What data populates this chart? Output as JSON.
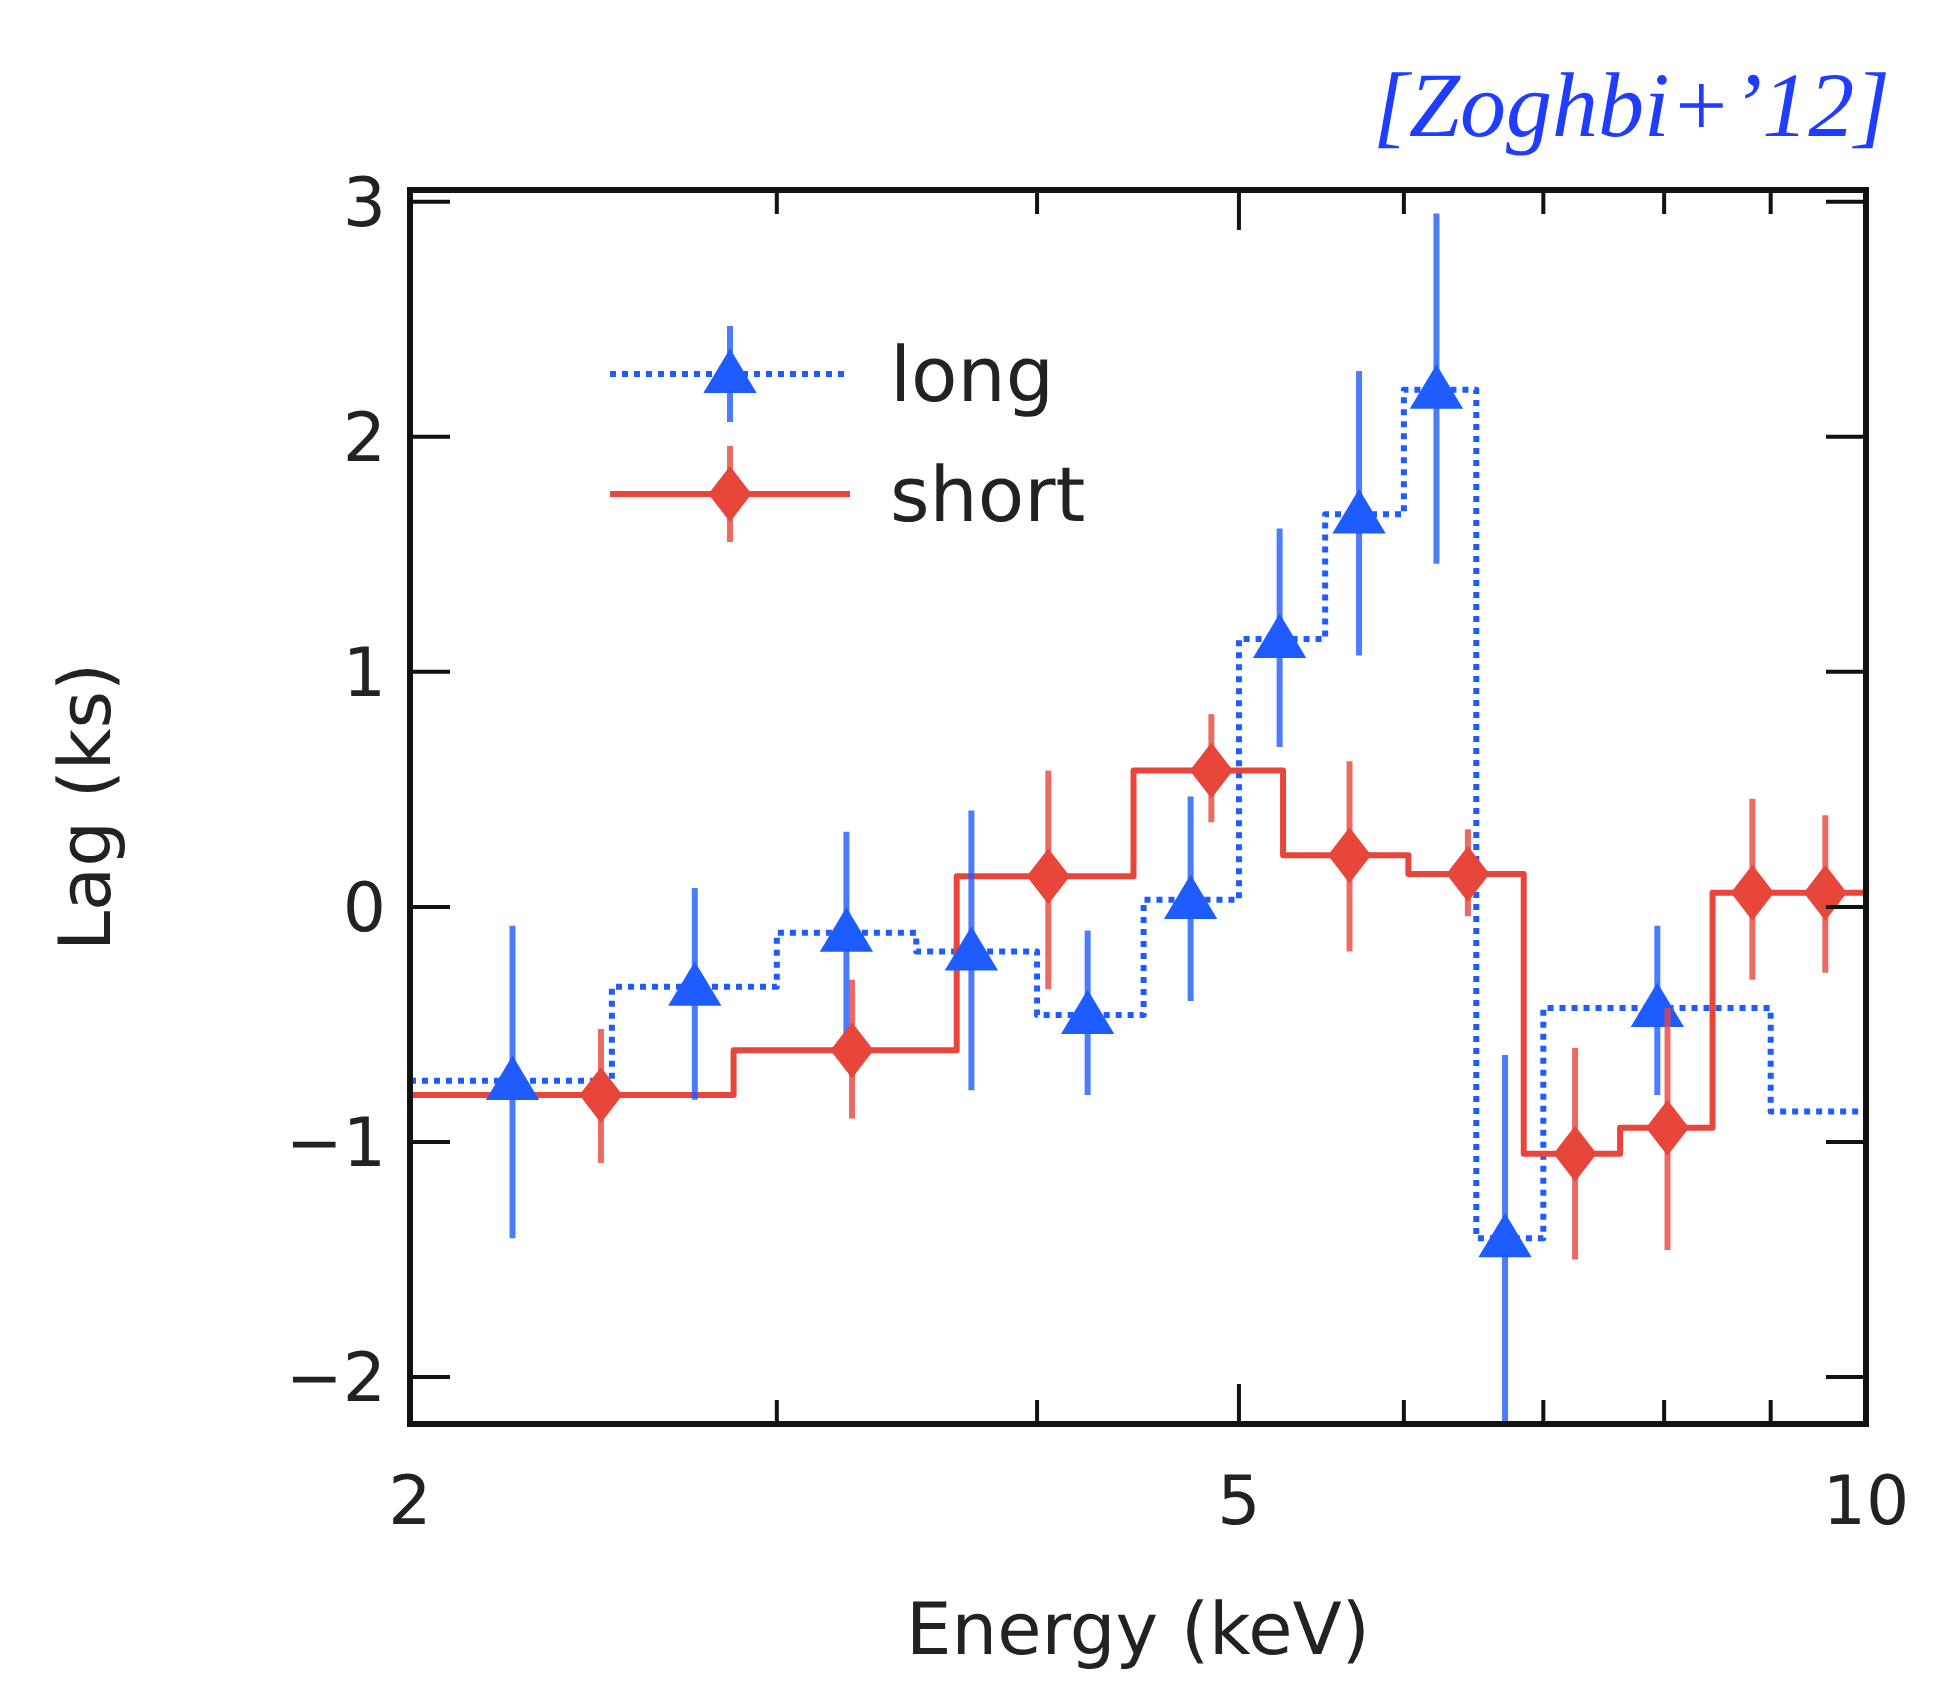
{
  "chart_data": {
    "type": "scatter",
    "xlabel": "Energy (keV)",
    "ylabel": "Lag (ks)",
    "annotations": [
      "[Zoghbi+’12]"
    ],
    "log": "x",
    "xlim": [
      2,
      10
    ],
    "ylim": [
      -2.2,
      3.05
    ],
    "xticks": [
      2,
      {
        "value": 3,
        "label": null
      },
      {
        "value": 4,
        "label": null
      },
      5,
      {
        "value": 6,
        "label": null
      },
      {
        "value": 7,
        "label": null
      },
      {
        "value": 8,
        "label": null
      },
      {
        "value": 9,
        "label": null
      },
      10
    ],
    "yticks": [
      {
        "value": -2,
        "label": "−2"
      },
      {
        "value": -1,
        "label": "−1"
      },
      0,
      1,
      2,
      3
    ],
    "legend": "top left",
    "grid": false,
    "series": [
      {
        "type": "step",
        "color": "#1f5cff",
        "line_style": "dotted",
        "x": [
          2,
          2.5,
          3,
          3.5,
          4,
          4.5,
          5,
          5.5,
          6,
          6.5,
          7,
          9,
          10
        ],
        "values": [
          -0.74,
          -0.34,
          -0.11,
          -0.19,
          -0.46,
          0.03,
          1.14,
          1.67,
          2.2,
          -1.41,
          -0.43,
          -0.87,
          -0.87
        ]
      },
      {
        "type": "step",
        "color": "#e8463a",
        "line_style": "solid",
        "x": [
          2,
          2.86,
          3.66,
          4.45,
          5.25,
          6.03,
          6.85,
          7.62,
          8.44,
          10
        ],
        "values": [
          -0.8,
          -0.61,
          0.13,
          0.58,
          0.22,
          0.14,
          -1.05,
          -0.94,
          0.06,
          0.06
        ]
      },
      {
        "name": "long",
        "color": "#1f5cff",
        "marker": "triangle",
        "line_style": "dotted",
        "x": [
          2.24,
          2.74,
          3.24,
          3.72,
          4.23,
          4.74,
          5.23,
          5.71,
          6.22,
          6.71,
          7.94
        ],
        "values": [
          -0.74,
          -0.34,
          -0.11,
          -0.19,
          -0.46,
          0.03,
          1.14,
          1.67,
          2.2,
          -1.41,
          -0.43
        ],
        "errors": [
          [
            -1.41,
            -0.08
          ],
          [
            -0.82,
            0.08
          ],
          [
            -0.65,
            0.32
          ],
          [
            -0.78,
            0.41
          ],
          [
            -0.8,
            -0.1
          ],
          [
            -0.4,
            0.47
          ],
          [
            0.68,
            1.61
          ],
          [
            1.07,
            2.28
          ],
          [
            1.46,
            2.95
          ],
          [
            -2.2,
            -0.63
          ],
          [
            -0.8,
            -0.08
          ]
        ]
      },
      {
        "name": "short",
        "color": "#e8463a",
        "marker": "diamond",
        "line_style": "solid",
        "x": [
          2.47,
          3.26,
          4.05,
          4.85,
          5.65,
          6.44,
          7.25,
          8.03,
          8.82,
          9.56
        ],
        "values": [
          -0.8,
          -0.61,
          0.13,
          0.58,
          0.22,
          0.14,
          -1.05,
          -0.94,
          0.06,
          0.06
        ],
        "errors": [
          [
            -1.09,
            -0.52
          ],
          [
            -0.9,
            -0.31
          ],
          [
            -0.35,
            0.58
          ],
          [
            0.36,
            0.82
          ],
          [
            -0.19,
            0.62
          ],
          [
            -0.04,
            0.33
          ],
          [
            -1.5,
            -0.6
          ],
          [
            -1.46,
            -0.43
          ],
          [
            -0.31,
            0.46
          ],
          [
            -0.28,
            0.39
          ]
        ]
      }
    ]
  }
}
